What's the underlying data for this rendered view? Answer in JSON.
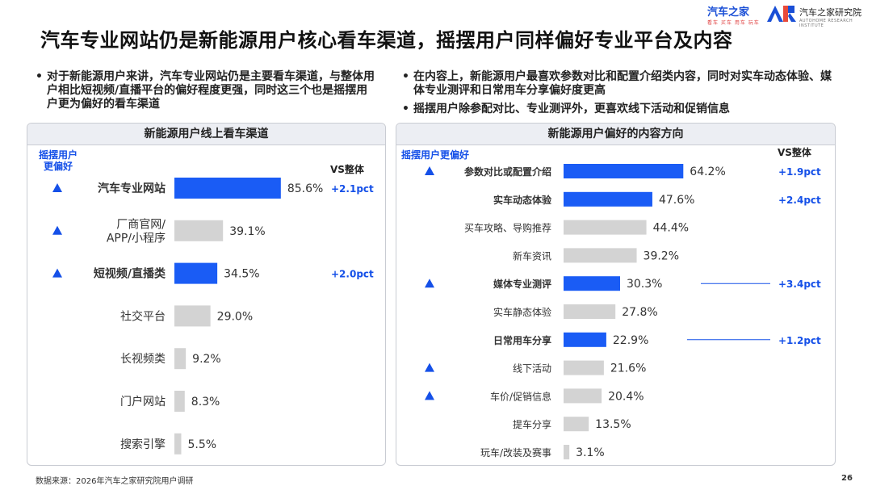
{
  "header": {
    "title": "汽车专业网站仍是新能源用户核心看车渠道，摇摆用户同样偏好专业平台及内容",
    "logo_brand": "汽车之家",
    "logo_slogan": "看车 买车 用车 玩车",
    "logo_institute": "汽车之家研究院",
    "logo_institute_en": "AUTOHOME RESEARCH INSTITUTE"
  },
  "bullets_left": [
    "对于新能源用户来讲，汽车专业网站仍是主要看车渠道，与整体用户相比短视频/直播平台的偏好程度更强，同时这三个也是摇摆用户更为偏好的看车渠道"
  ],
  "bullets_right": [
    "在内容上，新能源用户最喜欢参数对比和配置介绍类内容，同时对实车动态体验、媒体专业测评和日常用车分享偏好度更高",
    "摇摆用户除参配对比、专业测评外，更喜欢线下活动和促销信息"
  ],
  "footer": {
    "source": "数据来源：2026年汽车之家研究院用户调研",
    "page_number": "26"
  },
  "colors": {
    "highlight_bar": "#1a5cf5",
    "normal_bar": "#d3d3d3",
    "accent_text": "#1550e8"
  },
  "chart_data": [
    {
      "type": "bar",
      "orientation": "horizontal",
      "title": "新能源用户线上看车渠道",
      "legend_note": "摇摆用户\n更偏好",
      "vs_header": "VS整体",
      "unit": "%",
      "categories": [
        "汽车专业网站",
        "厂商官网/\nAPP/小程序",
        "短视频/直播类",
        "社交平台",
        "长视频类",
        "门户网站",
        "搜索引擎"
      ],
      "values": [
        85.6,
        39.1,
        34.5,
        29.0,
        9.2,
        8.3,
        5.5
      ],
      "value_labels": [
        "85.6%",
        "39.1%",
        "34.5%",
        "29.0%",
        "9.2%",
        "8.3%",
        "5.5%"
      ],
      "highlighted": [
        true,
        false,
        true,
        false,
        false,
        false,
        false
      ],
      "swing_marker": [
        true,
        true,
        true,
        false,
        false,
        false,
        false
      ],
      "vs_overall": [
        "+2.1pct",
        "",
        "+2.0pct",
        "",
        "",
        "",
        ""
      ],
      "xlim": [
        0,
        100
      ]
    },
    {
      "type": "bar",
      "orientation": "horizontal",
      "title": "新能源用户偏好的内容方向",
      "legend_note": "摇摆用户更偏好",
      "vs_header": "VS整体",
      "unit": "%",
      "categories": [
        "参数对比或配置介绍",
        "实车动态体验",
        "买车攻略、导购推荐",
        "新车资讯",
        "媒体专业测评",
        "实车静态体验",
        "日常用车分享",
        "线下活动",
        "车价/促销信息",
        "提车分享",
        "玩车/改装及赛事"
      ],
      "values": [
        64.2,
        47.6,
        44.4,
        39.2,
        30.3,
        27.8,
        22.9,
        21.6,
        20.4,
        13.5,
        3.1
      ],
      "value_labels": [
        "64.2%",
        "47.6%",
        "44.4%",
        "39.2%",
        "30.3%",
        "27.8%",
        "22.9%",
        "21.6%",
        "20.4%",
        "13.5%",
        "3.1%"
      ],
      "highlighted": [
        true,
        true,
        false,
        false,
        true,
        false,
        true,
        false,
        false,
        false,
        false
      ],
      "swing_marker": [
        true,
        false,
        false,
        false,
        true,
        false,
        false,
        true,
        true,
        false,
        false
      ],
      "vs_overall": [
        "+1.9pct",
        "+2.4pct",
        "",
        "",
        "+3.4pct",
        "",
        "+1.2pct",
        "",
        "",
        "",
        ""
      ],
      "xlim": [
        0,
        100
      ]
    }
  ]
}
